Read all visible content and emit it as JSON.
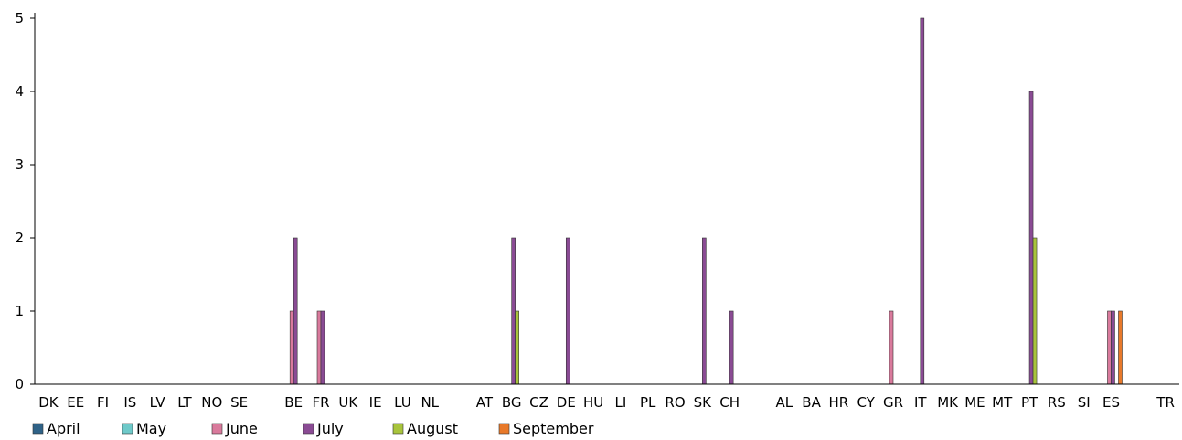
{
  "chart_data": {
    "type": "bar",
    "title": "",
    "xlabel": "",
    "ylabel": "",
    "ylim": [
      0,
      5
    ],
    "yticks": [
      0,
      1,
      2,
      3,
      4,
      5
    ],
    "grid": false,
    "legend_position": "bottom-left",
    "categories": [
      "DK",
      "EE",
      "FI",
      "IS",
      "LV",
      "LT",
      "NO",
      "SE",
      "",
      "BE",
      "FR",
      "UK",
      "IE",
      "LU",
      "NL",
      "",
      "AT",
      "BG",
      "CZ",
      "DE",
      "HU",
      "LI",
      "PL",
      "RO",
      "SK",
      "CH",
      "",
      "AL",
      "BA",
      "HR",
      "CY",
      "GR",
      "IT",
      "MK",
      "ME",
      "MT",
      "PT",
      "RS",
      "SI",
      "ES",
      "",
      "TR"
    ],
    "series": [
      {
        "name": "April",
        "color": "#2f6287",
        "values": [
          0,
          0,
          0,
          0,
          0,
          0,
          0,
          0,
          0,
          0,
          0,
          0,
          0,
          0,
          0,
          0,
          0,
          0,
          0,
          0,
          0,
          0,
          0,
          0,
          0,
          0,
          0,
          0,
          0,
          0,
          0,
          0,
          0,
          0,
          0,
          0,
          0,
          0,
          0,
          0,
          0,
          0
        ]
      },
      {
        "name": "May",
        "color": "#6ec9c9",
        "values": [
          0,
          0,
          0,
          0,
          0,
          0,
          0,
          0,
          0,
          0,
          0,
          0,
          0,
          0,
          0,
          0,
          0,
          0,
          0,
          0,
          0,
          0,
          0,
          0,
          0,
          0,
          0,
          0,
          0,
          0,
          0,
          0,
          0,
          0,
          0,
          0,
          0,
          0,
          0,
          0,
          0,
          0
        ]
      },
      {
        "name": "June",
        "color": "#d97a9c",
        "values": [
          0,
          0,
          0,
          0,
          0,
          0,
          0,
          0,
          0,
          1,
          1,
          0,
          0,
          0,
          0,
          0,
          0,
          0,
          0,
          0,
          0,
          0,
          0,
          0,
          0,
          0,
          0,
          0,
          0,
          0,
          0,
          1,
          0,
          0,
          0,
          0,
          0,
          0,
          0,
          1,
          0,
          0
        ]
      },
      {
        "name": "July",
        "color": "#8a4b94",
        "values": [
          0,
          0,
          0,
          0,
          0,
          0,
          0,
          0,
          0,
          2,
          1,
          0,
          0,
          0,
          0,
          0,
          0,
          2,
          0,
          2,
          0,
          0,
          0,
          0,
          2,
          1,
          0,
          0,
          0,
          0,
          0,
          0,
          5,
          0,
          0,
          0,
          4,
          0,
          0,
          1,
          0,
          0
        ]
      },
      {
        "name": "August",
        "color": "#a8c43c",
        "values": [
          0,
          0,
          0,
          0,
          0,
          0,
          0,
          0,
          0,
          0,
          0,
          0,
          0,
          0,
          0,
          0,
          0,
          1,
          0,
          0,
          0,
          0,
          0,
          0,
          0,
          0,
          0,
          0,
          0,
          0,
          0,
          0,
          0,
          0,
          0,
          0,
          2,
          0,
          0,
          0,
          0,
          0
        ]
      },
      {
        "name": "September",
        "color": "#e8792a",
        "values": [
          0,
          0,
          0,
          0,
          0,
          0,
          0,
          0,
          0,
          0,
          0,
          0,
          0,
          0,
          0,
          0,
          0,
          0,
          0,
          0,
          0,
          0,
          0,
          0,
          0,
          0,
          0,
          0,
          0,
          0,
          0,
          0,
          0,
          0,
          0,
          0,
          0,
          0,
          0,
          1,
          0,
          0
        ]
      }
    ]
  }
}
